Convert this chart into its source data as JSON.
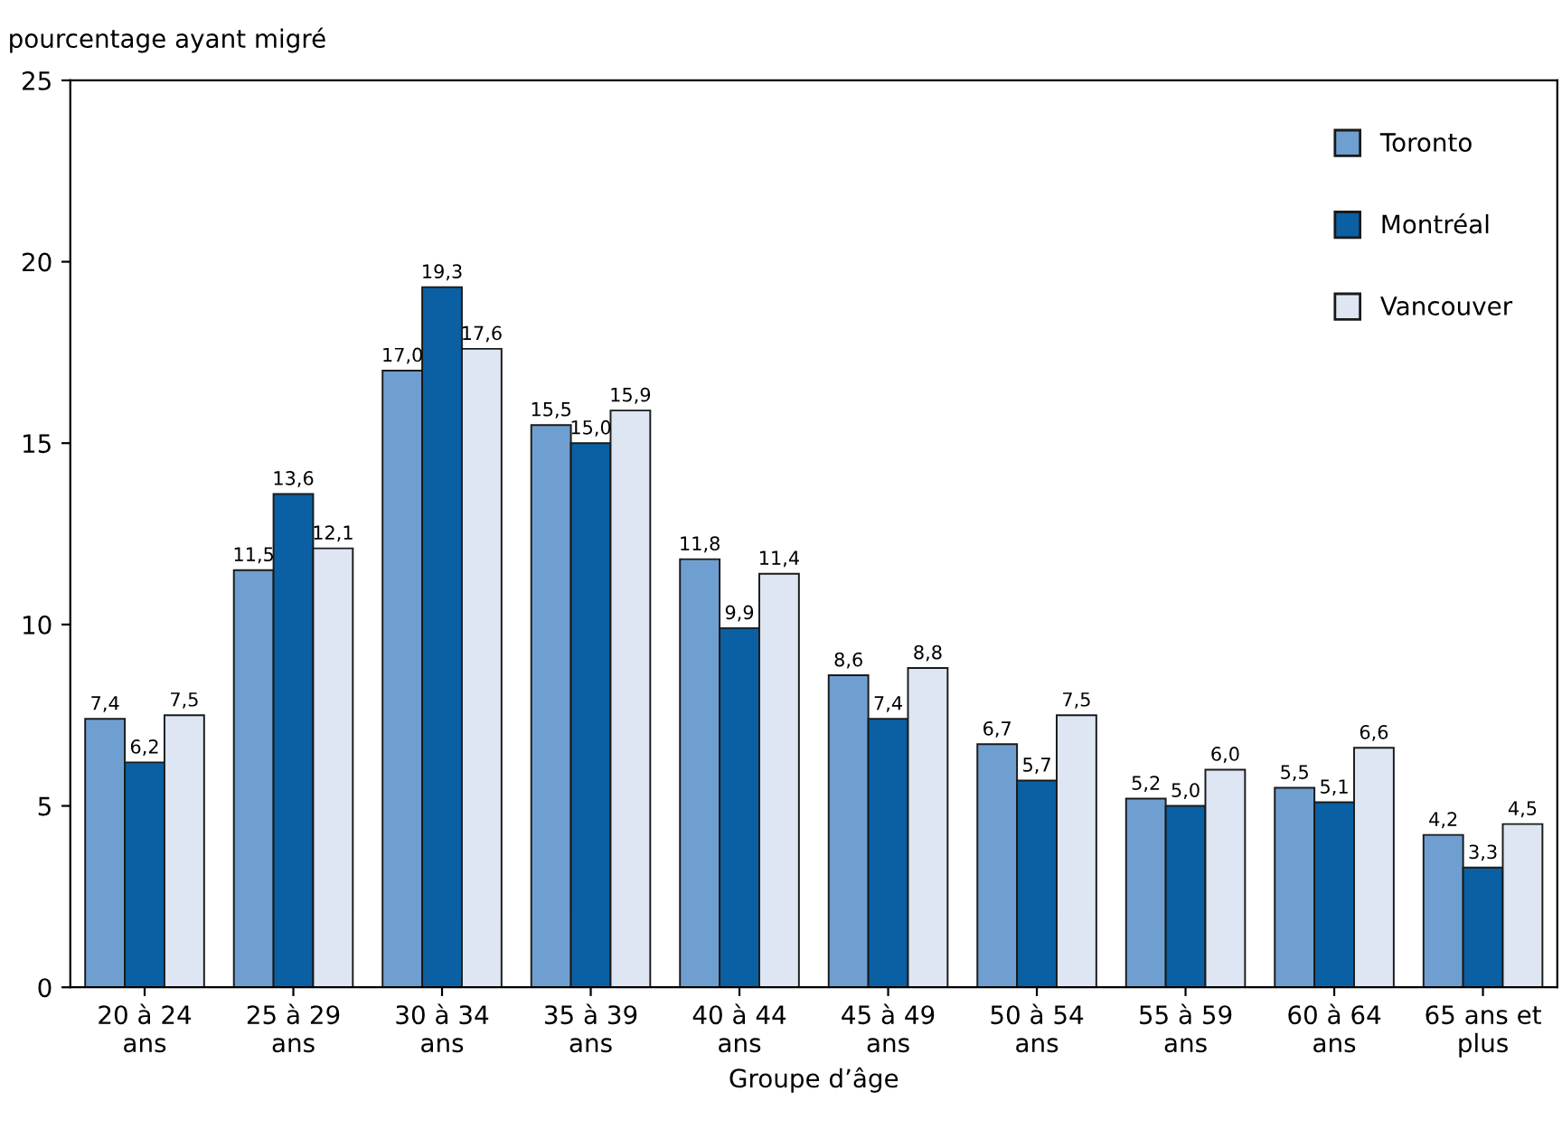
{
  "chart_data": {
    "type": "bar",
    "ylabel": "pourcentage ayant migré",
    "xlabel": "Groupe d’âge",
    "categories": [
      "20 à 24\nans",
      "25 à 29\nans",
      "30 à 34\nans",
      "35 à 39\nans",
      "40 à 44\nans",
      "45 à 49\nans",
      "50 à 54\nans",
      "55 à 59\nans",
      "60 à 64\nans",
      "65 ans et\nplus"
    ],
    "series": [
      {
        "name": "Toronto",
        "color": "#6f9fd0",
        "values": [
          7.4,
          11.5,
          17.0,
          15.5,
          11.8,
          8.6,
          6.7,
          5.2,
          5.5,
          4.2
        ],
        "value_labels": [
          "7,4",
          "11,5",
          "17,0",
          "15,5",
          "11,8",
          "8,6",
          "6,7",
          "5,2",
          "5,5",
          "4,2"
        ]
      },
      {
        "name": "Montréal",
        "color": "#0a60a3",
        "values": [
          6.2,
          13.6,
          19.3,
          15.0,
          9.9,
          7.4,
          5.7,
          5.0,
          5.1,
          3.3
        ],
        "value_labels": [
          "6,2",
          "13,6",
          "19,3",
          "15,0",
          "9,9",
          "7,4",
          "5,7",
          "5,0",
          "5,1",
          "3,3"
        ]
      },
      {
        "name": "Vancouver",
        "color": "#dde6f2",
        "values": [
          7.5,
          12.1,
          17.6,
          15.9,
          11.4,
          8.8,
          7.5,
          6.0,
          6.6,
          4.5
        ],
        "value_labels": [
          "7,5",
          "12,1",
          "17,6",
          "15,9",
          "11,4",
          "8,8",
          "7,5",
          "6,0",
          "6,6",
          "4,5"
        ]
      }
    ],
    "ylim": [
      0,
      25
    ],
    "yticks": [
      0,
      5,
      10,
      15,
      20,
      25
    ],
    "grid": false,
    "legend": "top right"
  }
}
